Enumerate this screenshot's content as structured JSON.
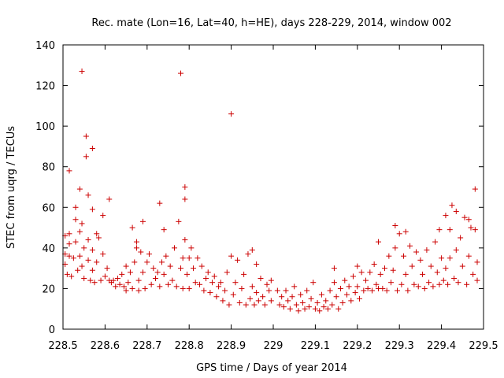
{
  "chart_data": {
    "type": "scatter",
    "title": "Rec. mate (Lon=16, Lat=40, h=HE), days 228-229, 2014, window 002",
    "xlabel": "GPS time / Days of year 2014",
    "ylabel": "STEC from uqrg / TECUs",
    "xlim": [
      228.5,
      229.5
    ],
    "ylim": [
      0,
      140
    ],
    "xticks": [
      228.5,
      228.6,
      228.7,
      228.8,
      228.9,
      229,
      229.1,
      229.2,
      229.3,
      229.4,
      229.5
    ],
    "xtick_labels": [
      "228.5",
      "228.6",
      "228.7",
      "228.8",
      "228.9",
      "229",
      "229.1",
      "229.2",
      "229.3",
      "229.4",
      "229.5"
    ],
    "yticks": [
      0,
      20,
      40,
      60,
      80,
      100,
      120,
      140
    ],
    "ytick_labels": [
      "0",
      "20",
      "40",
      "60",
      "80",
      "100",
      "120",
      "140"
    ],
    "grid": false,
    "marker": "+",
    "marker_color": "#cc0000",
    "series": [
      {
        "points": [
          [
            228.505,
            32
          ],
          [
            228.505,
            37
          ],
          [
            228.505,
            46
          ],
          [
            228.51,
            27
          ],
          [
            228.515,
            78
          ],
          [
            228.515,
            47
          ],
          [
            228.515,
            42
          ],
          [
            228.515,
            36
          ],
          [
            228.52,
            26
          ],
          [
            228.525,
            35
          ],
          [
            228.53,
            60
          ],
          [
            228.53,
            54
          ],
          [
            228.53,
            43
          ],
          [
            228.535,
            29
          ],
          [
            228.54,
            69
          ],
          [
            228.54,
            48
          ],
          [
            228.54,
            36
          ],
          [
            228.545,
            127
          ],
          [
            228.545,
            52
          ],
          [
            228.545,
            31
          ],
          [
            228.55,
            25
          ],
          [
            228.55,
            40
          ],
          [
            228.555,
            95
          ],
          [
            228.555,
            85
          ],
          [
            228.56,
            66
          ],
          [
            228.56,
            44
          ],
          [
            228.56,
            34
          ],
          [
            228.565,
            24
          ],
          [
            228.57,
            89
          ],
          [
            228.57,
            59
          ],
          [
            228.57,
            39
          ],
          [
            228.57,
            29
          ],
          [
            228.575,
            23
          ],
          [
            228.58,
            47
          ],
          [
            228.58,
            33
          ],
          [
            228.585,
            45
          ],
          [
            228.59,
            24
          ],
          [
            228.595,
            56
          ],
          [
            228.595,
            37
          ],
          [
            228.6,
            26
          ],
          [
            228.605,
            30
          ],
          [
            228.61,
            64
          ],
          [
            228.61,
            24
          ],
          [
            228.615,
            23
          ],
          [
            228.62,
            24
          ],
          [
            228.625,
            21
          ],
          [
            228.63,
            25
          ],
          [
            228.635,
            22
          ],
          [
            228.64,
            27
          ],
          [
            228.645,
            21
          ],
          [
            228.65,
            31
          ],
          [
            228.65,
            19
          ],
          [
            228.655,
            23
          ],
          [
            228.66,
            28
          ],
          [
            228.665,
            50
          ],
          [
            228.665,
            20
          ],
          [
            228.67,
            33
          ],
          [
            228.675,
            43
          ],
          [
            228.675,
            40
          ],
          [
            228.68,
            24
          ],
          [
            228.68,
            19
          ],
          [
            228.685,
            38
          ],
          [
            228.69,
            53
          ],
          [
            228.69,
            28
          ],
          [
            228.695,
            20
          ],
          [
            228.7,
            33
          ],
          [
            228.705,
            37
          ],
          [
            228.71,
            22
          ],
          [
            228.715,
            30
          ],
          [
            228.72,
            25
          ],
          [
            228.725,
            28
          ],
          [
            228.73,
            62
          ],
          [
            228.73,
            21
          ],
          [
            228.735,
            33
          ],
          [
            228.74,
            49
          ],
          [
            228.74,
            27
          ],
          [
            228.745,
            36
          ],
          [
            228.75,
            22
          ],
          [
            228.755,
            31
          ],
          [
            228.76,
            24
          ],
          [
            228.765,
            40
          ],
          [
            228.77,
            21
          ],
          [
            228.775,
            53
          ],
          [
            228.78,
            126
          ],
          [
            228.78,
            30
          ],
          [
            228.785,
            35
          ],
          [
            228.785,
            20
          ],
          [
            228.79,
            70
          ],
          [
            228.79,
            64
          ],
          [
            228.79,
            44
          ],
          [
            228.795,
            27
          ],
          [
            228.8,
            35
          ],
          [
            228.8,
            20
          ],
          [
            228.805,
            40
          ],
          [
            228.81,
            30
          ],
          [
            228.815,
            23
          ],
          [
            228.82,
            35
          ],
          [
            228.825,
            22
          ],
          [
            228.83,
            31
          ],
          [
            228.835,
            19
          ],
          [
            228.84,
            25
          ],
          [
            228.845,
            28
          ],
          [
            228.85,
            18
          ],
          [
            228.855,
            23
          ],
          [
            228.86,
            26
          ],
          [
            228.865,
            16
          ],
          [
            228.87,
            21
          ],
          [
            228.875,
            23
          ],
          [
            228.88,
            14
          ],
          [
            228.885,
            19
          ],
          [
            228.89,
            28
          ],
          [
            228.895,
            12
          ],
          [
            228.9,
            106
          ],
          [
            228.9,
            36
          ],
          [
            228.905,
            17
          ],
          [
            228.91,
            23
          ],
          [
            228.915,
            34
          ],
          [
            228.92,
            13
          ],
          [
            228.925,
            20
          ],
          [
            228.93,
            27
          ],
          [
            228.935,
            12
          ],
          [
            228.94,
            37
          ],
          [
            228.945,
            15
          ],
          [
            228.95,
            39
          ],
          [
            228.95,
            21
          ],
          [
            228.955,
            12
          ],
          [
            228.96,
            32
          ],
          [
            228.96,
            18
          ],
          [
            228.965,
            14
          ],
          [
            228.97,
            25
          ],
          [
            228.975,
            16
          ],
          [
            228.98,
            12
          ],
          [
            228.985,
            22
          ],
          [
            228.99,
            19
          ],
          [
            228.995,
            14
          ],
          [
            228.995,
            24
          ],
          [
            229.01,
            19
          ],
          [
            229.015,
            12
          ],
          [
            229.02,
            16
          ],
          [
            229.025,
            11
          ],
          [
            229.03,
            19
          ],
          [
            229.035,
            14
          ],
          [
            229.04,
            10
          ],
          [
            229.045,
            16
          ],
          [
            229.05,
            21
          ],
          [
            229.055,
            12
          ],
          [
            229.06,
            9
          ],
          [
            229.065,
            17
          ],
          [
            229.07,
            13
          ],
          [
            229.075,
            10
          ],
          [
            229.08,
            19
          ],
          [
            229.085,
            11
          ],
          [
            229.09,
            15
          ],
          [
            229.095,
            23
          ],
          [
            229.1,
            10
          ],
          [
            229.105,
            13
          ],
          [
            229.11,
            9
          ],
          [
            229.115,
            17
          ],
          [
            229.12,
            11
          ],
          [
            229.125,
            14
          ],
          [
            229.13,
            10
          ],
          [
            229.135,
            19
          ],
          [
            229.14,
            12
          ],
          [
            229.145,
            30
          ],
          [
            229.145,
            23
          ],
          [
            229.15,
            16
          ],
          [
            229.155,
            10
          ],
          [
            229.16,
            20
          ],
          [
            229.165,
            13
          ],
          [
            229.17,
            24
          ],
          [
            229.175,
            17
          ],
          [
            229.18,
            21
          ],
          [
            229.185,
            14
          ],
          [
            229.19,
            26
          ],
          [
            229.195,
            18
          ],
          [
            229.2,
            31
          ],
          [
            229.2,
            21
          ],
          [
            229.205,
            15
          ],
          [
            229.21,
            28
          ],
          [
            229.215,
            19
          ],
          [
            229.22,
            24
          ],
          [
            229.225,
            20
          ],
          [
            229.23,
            28
          ],
          [
            229.235,
            19
          ],
          [
            229.24,
            32
          ],
          [
            229.245,
            22
          ],
          [
            229.25,
            43
          ],
          [
            229.25,
            20
          ],
          [
            229.255,
            27
          ],
          [
            229.26,
            20
          ],
          [
            229.265,
            30
          ],
          [
            229.27,
            19
          ],
          [
            229.275,
            36
          ],
          [
            229.28,
            23
          ],
          [
            229.285,
            29
          ],
          [
            229.29,
            51
          ],
          [
            229.29,
            40
          ],
          [
            229.295,
            19
          ],
          [
            229.3,
            47
          ],
          [
            229.305,
            22
          ],
          [
            229.31,
            36
          ],
          [
            229.315,
            48
          ],
          [
            229.315,
            27
          ],
          [
            229.32,
            19
          ],
          [
            229.325,
            41
          ],
          [
            229.33,
            31
          ],
          [
            229.335,
            22
          ],
          [
            229.34,
            38
          ],
          [
            229.345,
            21
          ],
          [
            229.35,
            34
          ],
          [
            229.355,
            27
          ],
          [
            229.36,
            20
          ],
          [
            229.365,
            39
          ],
          [
            229.37,
            23
          ],
          [
            229.375,
            31
          ],
          [
            229.38,
            21
          ],
          [
            229.385,
            43
          ],
          [
            229.39,
            28
          ],
          [
            229.395,
            49
          ],
          [
            229.395,
            22
          ],
          [
            229.4,
            35
          ],
          [
            229.405,
            24
          ],
          [
            229.41,
            56
          ],
          [
            229.41,
            30
          ],
          [
            229.415,
            22
          ],
          [
            229.42,
            49
          ],
          [
            229.42,
            35
          ],
          [
            229.425,
            61
          ],
          [
            229.43,
            25
          ],
          [
            229.435,
            39
          ],
          [
            229.435,
            58
          ],
          [
            229.44,
            23
          ],
          [
            229.445,
            45
          ],
          [
            229.45,
            31
          ],
          [
            229.455,
            55
          ],
          [
            229.46,
            22
          ],
          [
            229.465,
            54
          ],
          [
            229.465,
            36
          ],
          [
            229.47,
            50
          ],
          [
            229.475,
            27
          ],
          [
            229.48,
            69
          ],
          [
            229.48,
            49
          ],
          [
            229.485,
            33
          ],
          [
            229.485,
            24
          ]
        ]
      }
    ]
  }
}
